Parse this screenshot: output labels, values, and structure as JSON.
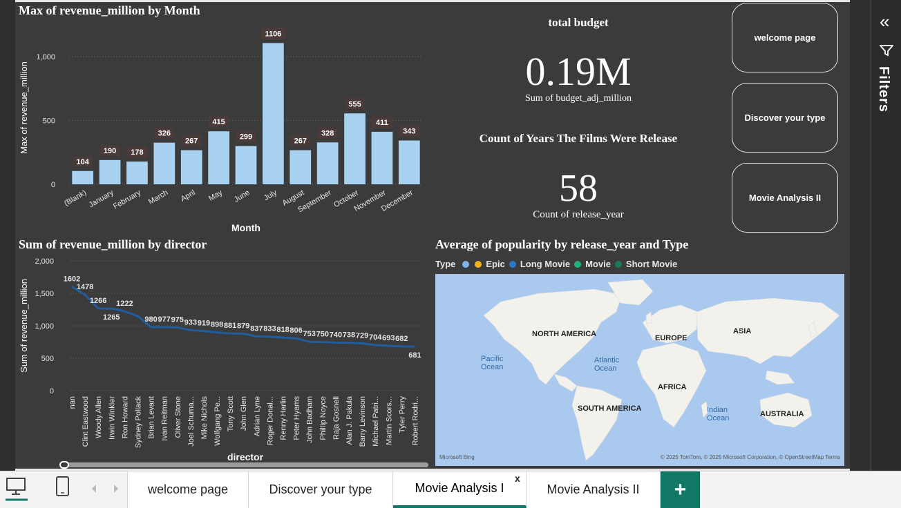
{
  "bar_chart": {
    "title": "Max of revenue_million by Month",
    "chart_data": {
      "type": "bar",
      "categories": [
        "(Blank)",
        "January",
        "February",
        "March",
        "April",
        "May",
        "June",
        "July",
        "August",
        "September",
        "October",
        "November",
        "December"
      ],
      "values": [
        104,
        190,
        178,
        326,
        267,
        415,
        299,
        1106,
        267,
        328,
        555,
        411,
        343
      ],
      "xlabel": "Month",
      "ylabel": "Max of revenue_million",
      "yticks": [
        "0",
        "500",
        "1,000"
      ],
      "ylim": [
        0,
        1200
      ],
      "color": "#a9d1f0"
    }
  },
  "cards": {
    "budget_title": "total budget",
    "budget_value": "0.19M",
    "budget_caption": "Sum of budget_adj_million",
    "years_title": "Count of Years The Films Were Release",
    "years_value": "58",
    "years_caption": "Count of release_year"
  },
  "nav_buttons": [
    "welcome page",
    "Discover your type",
    "Movie Analysis II"
  ],
  "line_chart": {
    "title": "Sum of revenue_million by director",
    "chart_data": {
      "type": "line",
      "categories": [
        "nan",
        "Clint Eastwood",
        "Woody Allen",
        "Irwin Winkler",
        "Ron Howard",
        "Sydney Pollack",
        "Brian Levant",
        "Ivan Reitman",
        "Oliver Stone",
        "Joel Schuma...",
        "Mike Nichols",
        "Wolfgang Pe...",
        "Tony Scott",
        "John Glen",
        "Adrian Lyne",
        "Roger Donal...",
        "Renny Harlin",
        "Peter Hyams",
        "John Badham",
        "Phillip Noyce",
        "Raja Gosnell",
        "Alan J. Pakula",
        "Barry Levinson",
        "Michael Patri...",
        "Martin Scors...",
        "Tyler Perry",
        "Robert Rodri..."
      ],
      "values": [
        1602,
        1478,
        1266,
        1265,
        1222,
        1150,
        980,
        977,
        975,
        933,
        919,
        898,
        881,
        879,
        837,
        833,
        818,
        806,
        753,
        750,
        740,
        738,
        729,
        704,
        693,
        682,
        681
      ],
      "value_labels": [
        "1602",
        "1478",
        "1266",
        "1265",
        "1222",
        "",
        "980",
        "977",
        "975",
        "933",
        "919",
        "898",
        "881",
        "879",
        "837",
        "833",
        "818",
        "806",
        "753",
        "750",
        "740",
        "738",
        "729",
        "704",
        "693",
        "682",
        "681"
      ],
      "xlabel": "director",
      "ylabel": "Sum of revenue_million",
      "yticks": [
        "0",
        "500",
        "1,000",
        "1,500",
        "2,000"
      ],
      "ylim": [
        0,
        2000
      ],
      "color": "#1f5d9e"
    }
  },
  "map_visual": {
    "title": "Average of popularity by release_year and Type",
    "legend_title": "Type",
    "legend": [
      {
        "label": "",
        "color": "#7fb4e8"
      },
      {
        "label": "Epic",
        "color": "#f2b21b"
      },
      {
        "label": "Long Movie",
        "color": "#2a78c6"
      },
      {
        "label": "Movie",
        "color": "#21b37a"
      },
      {
        "label": "Short Movie",
        "color": "#1a7a5c"
      }
    ],
    "continents": [
      "NORTH AMERICA",
      "EUROPE",
      "ASIA",
      "AFRICA",
      "SOUTH AMERICA",
      "AUSTRALIA"
    ],
    "oceans": [
      "Pacific Ocean",
      "Atlantic Ocean",
      "Indian Ocean"
    ],
    "brand": "Microsoft Bing",
    "copyright": "© 2025 TomTom, © 2025 Microsoft Corporation, © OpenStreetMap  Terms"
  },
  "filters": {
    "label": "Filters"
  },
  "tabs": [
    {
      "label": "welcome page"
    },
    {
      "label": "Discover your type"
    },
    {
      "label": "Movie Analysis I",
      "active": true,
      "close": "x"
    },
    {
      "label": "Movie Analysis II"
    }
  ],
  "add_tab": "+"
}
